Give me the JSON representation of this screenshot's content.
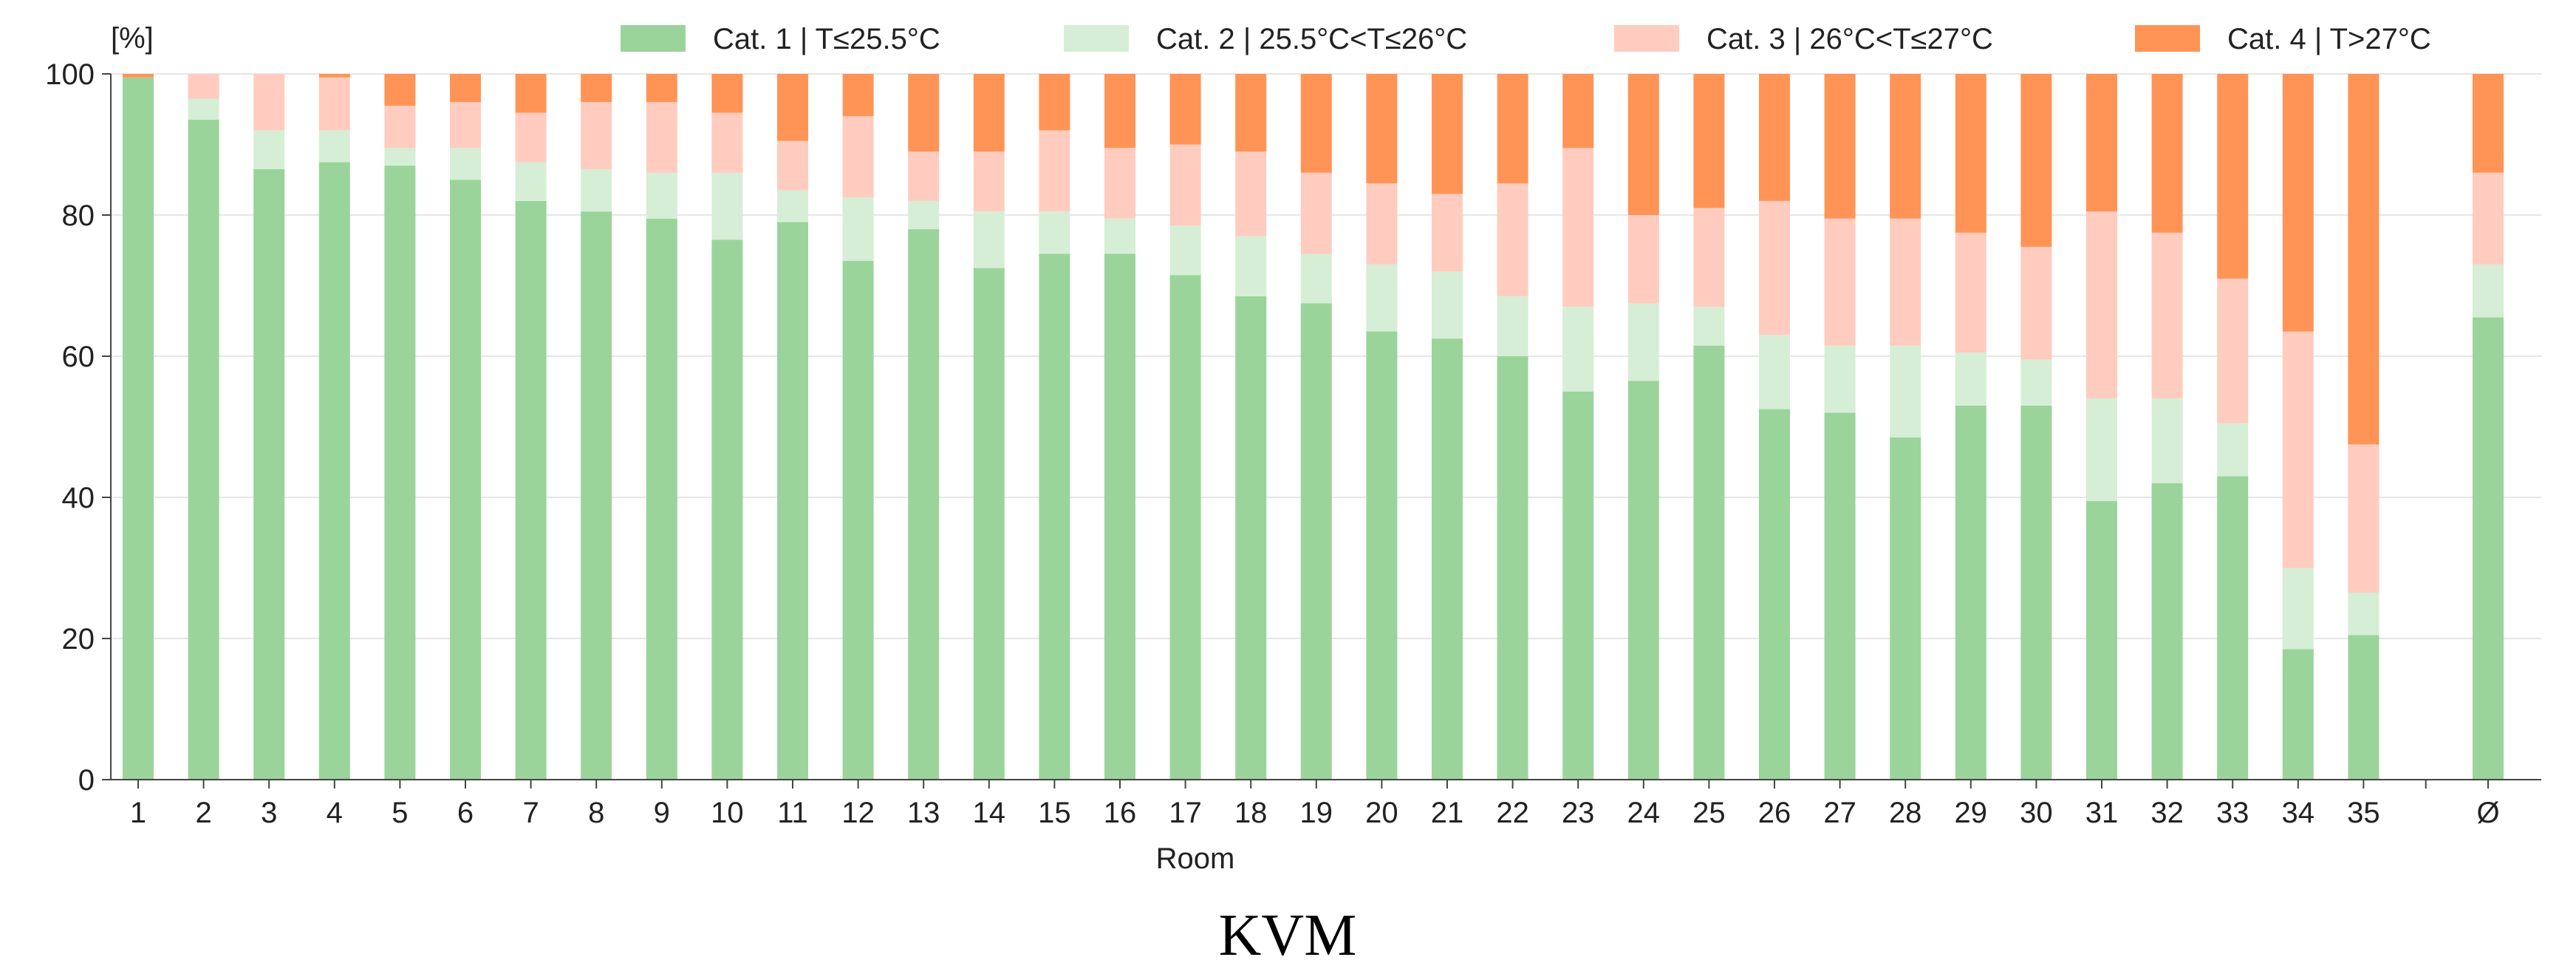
{
  "chart_data": {
    "type": "bar",
    "stacked": true,
    "title": "KVM",
    "xlabel": "Room",
    "ylabel": "[%]",
    "ylim": [
      0,
      100
    ],
    "yticks": [
      0,
      20,
      40,
      60,
      80,
      100
    ],
    "grid": "horizontal",
    "legend_position": "top",
    "categories": [
      "1",
      "2",
      "3",
      "4",
      "5",
      "6",
      "7",
      "8",
      "9",
      "10",
      "11",
      "12",
      "13",
      "14",
      "15",
      "16",
      "17",
      "18",
      "19",
      "20",
      "21",
      "22",
      "23",
      "24",
      "25",
      "26",
      "27",
      "28",
      "29",
      "30",
      "31",
      "32",
      "33",
      "34",
      "35",
      "Ø"
    ],
    "series": [
      {
        "name": "Cat. 1 | T≤25.5°C",
        "color": "#9ad49a",
        "values": [
          99.5,
          93.5,
          86.5,
          87.5,
          87,
          85,
          82,
          80.5,
          79.5,
          76.5,
          79,
          73.5,
          78,
          72.5,
          74.5,
          74.5,
          71.5,
          68.5,
          67.5,
          63.5,
          62.5,
          60,
          55,
          56.5,
          61.5,
          52.5,
          52,
          48.5,
          53,
          53,
          39.5,
          42,
          43,
          18.5,
          20.5,
          65.5
        ]
      },
      {
        "name": "Cat. 2 | 25.5°C<T≤26°C",
        "color": "#d5eed5",
        "values": [
          0,
          3,
          5.5,
          4.5,
          2.5,
          4.5,
          5.5,
          6,
          6.5,
          9.5,
          4.5,
          9,
          4,
          8,
          6,
          5,
          7,
          8.5,
          7,
          9.5,
          9.5,
          8.5,
          12,
          11,
          5.5,
          10.5,
          9.5,
          13,
          7.5,
          6.5,
          14.5,
          12,
          7.5,
          11.5,
          6,
          7.5
        ]
      },
      {
        "name": "Cat. 3 | 26°C<T≤27°C",
        "color": "#ffccbf",
        "values": [
          0,
          3.5,
          8,
          7.5,
          6,
          6.5,
          7,
          9.5,
          10,
          8.5,
          7,
          11.5,
          7,
          8.5,
          11.5,
          10,
          11.5,
          12,
          11.5,
          11.5,
          11,
          16,
          22.5,
          12.5,
          14,
          19,
          18,
          18,
          17,
          16,
          26.5,
          23.5,
          20.5,
          33.5,
          21,
          13
        ]
      },
      {
        "name": "Cat. 4 | T>27°C",
        "color": "#ff9456",
        "values": [
          0.5,
          0,
          0,
          0.5,
          4.5,
          4,
          5.5,
          4,
          4,
          5.5,
          9.5,
          6,
          11,
          11,
          8,
          10.5,
          10,
          11,
          14,
          15.5,
          17,
          15.5,
          10.5,
          20,
          19,
          18,
          20.5,
          20.5,
          22.5,
          24.5,
          19.5,
          22.5,
          29,
          36.5,
          52.5,
          14
        ]
      }
    ]
  }
}
